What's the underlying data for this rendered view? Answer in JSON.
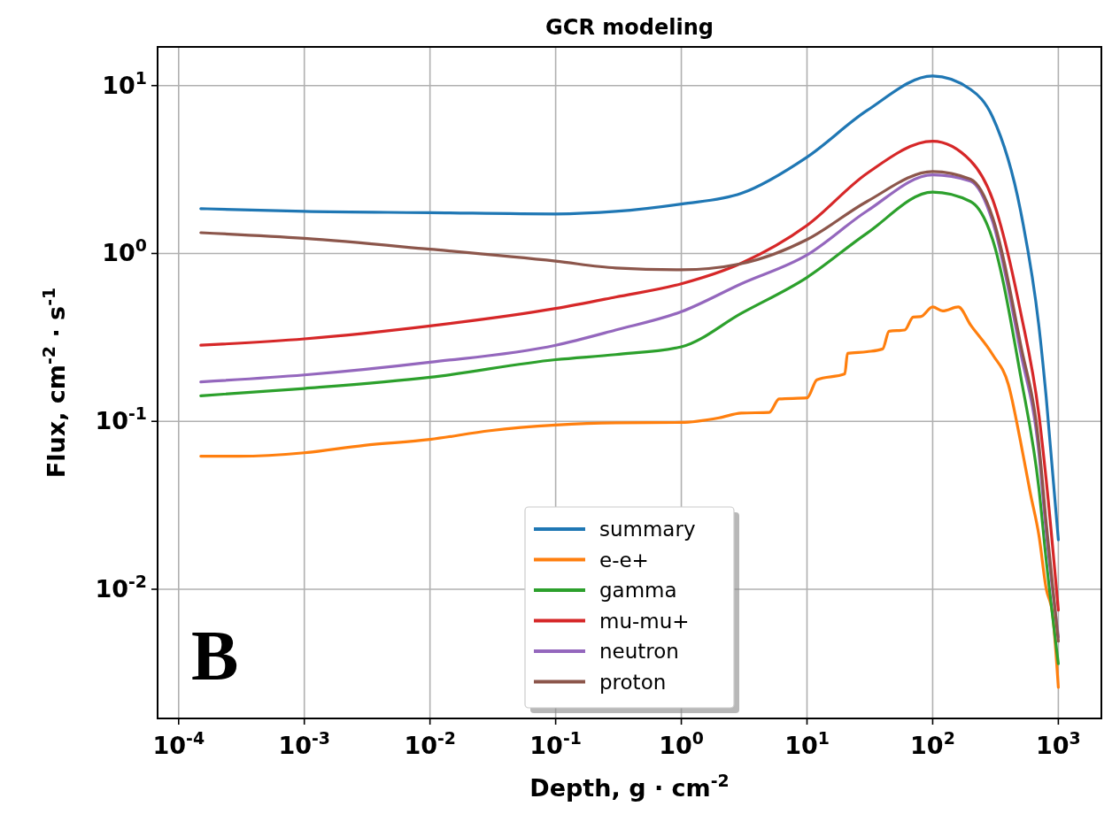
{
  "chart_data": {
    "type": "line",
    "title": "GCR modeling",
    "xlabel": "Depth, g · cm$^{-2}$",
    "ylabel": "Flux, cm$^{-2}$ · s$^{-1}$",
    "log": "xy",
    "grid": true,
    "legend": "bottom",
    "line_style": "solid",
    "xlim": [
      6.8e-05,
      2200
    ],
    "ylim": [
      0.0017,
      17
    ],
    "xticks": [
      {
        "value": 0.0001,
        "label": "10$^{-4}$"
      },
      {
        "value": 0.001,
        "label": "10$^{-3}$"
      },
      {
        "value": 0.01,
        "label": "10$^{-2}$"
      },
      {
        "value": 0.1,
        "label": "10$^{-1}$"
      },
      {
        "value": 1,
        "label": "10$^{0}$"
      },
      {
        "value": 10,
        "label": "10$^{1}$"
      },
      {
        "value": 100,
        "label": "10$^{2}$"
      },
      {
        "value": 1000,
        "label": "10$^{3}$"
      }
    ],
    "yticks": [
      {
        "value": 0.01,
        "label": "10$^{-2}$"
      },
      {
        "value": 0.1,
        "label": "10$^{-1}$"
      },
      {
        "value": 1,
        "label": "10$^{0}$"
      },
      {
        "value": 10,
        "label": "10$^{1}$"
      }
    ],
    "x": [
      0.00015,
      0.001,
      0.01,
      0.1,
      0.3,
      1,
      3,
      10,
      30,
      100,
      200,
      300,
      500,
      700,
      800,
      1000
    ],
    "annotations": [
      "B"
    ],
    "series": [
      {
        "name": "summary",
        "color": "#1f77b4",
        "values": [
          1.85,
          1.78,
          1.75,
          1.72,
          1.78,
          1.97,
          2.28,
          3.75,
          7.1,
          11.4,
          9.5,
          6.5,
          1.8,
          0.37,
          0.14,
          0.0197
        ]
      },
      {
        "name": "e-e+",
        "color": "#ff7f0e",
        "x": [
          0.00015,
          0.0003,
          0.001,
          0.003,
          0.01,
          0.03,
          0.1,
          0.3,
          1,
          2,
          3,
          5,
          6,
          10,
          12,
          20,
          21,
          30,
          40,
          45,
          60,
          70,
          80,
          100,
          120,
          160,
          200,
          300,
          400,
          500,
          600,
          700,
          800,
          900,
          1000
        ],
        "values": [
          0.062,
          0.062,
          0.065,
          0.072,
          0.078,
          0.088,
          0.095,
          0.098,
          0.0985,
          0.105,
          0.112,
          0.113,
          0.136,
          0.138,
          0.177,
          0.192,
          0.254,
          0.26,
          0.27,
          0.344,
          0.35,
          0.418,
          0.42,
          0.48,
          0.455,
          0.48,
          0.376,
          0.25,
          0.166,
          0.076,
          0.037,
          0.021,
          0.0101,
          0.0071,
          0.0026
        ]
      },
      {
        "name": "gamma",
        "color": "#2ca02c",
        "values": [
          0.142,
          0.157,
          0.183,
          0.233,
          0.25,
          0.278,
          0.44,
          0.72,
          1.32,
          2.32,
          2.04,
          1.21,
          0.188,
          0.04,
          0.015,
          0.0036
        ]
      },
      {
        "name": "mu-mu+",
        "color": "#d62728",
        "values": [
          0.284,
          0.31,
          0.37,
          0.47,
          0.55,
          0.66,
          0.875,
          1.47,
          3.0,
          4.66,
          3.57,
          2.1,
          0.45,
          0.11,
          0.045,
          0.0075
        ]
      },
      {
        "name": "neutron",
        "color": "#9467bd",
        "values": [
          0.172,
          0.189,
          0.225,
          0.284,
          0.35,
          0.45,
          0.66,
          0.98,
          1.79,
          2.94,
          2.7,
          1.55,
          0.26,
          0.065,
          0.022,
          0.0052
        ]
      },
      {
        "name": "proton",
        "color": "#8c564b",
        "values": [
          1.33,
          1.23,
          1.06,
          0.9,
          0.82,
          0.8,
          0.87,
          1.21,
          2.04,
          3.08,
          2.77,
          1.64,
          0.29,
          0.073,
          0.025,
          0.0049
        ]
      }
    ]
  }
}
